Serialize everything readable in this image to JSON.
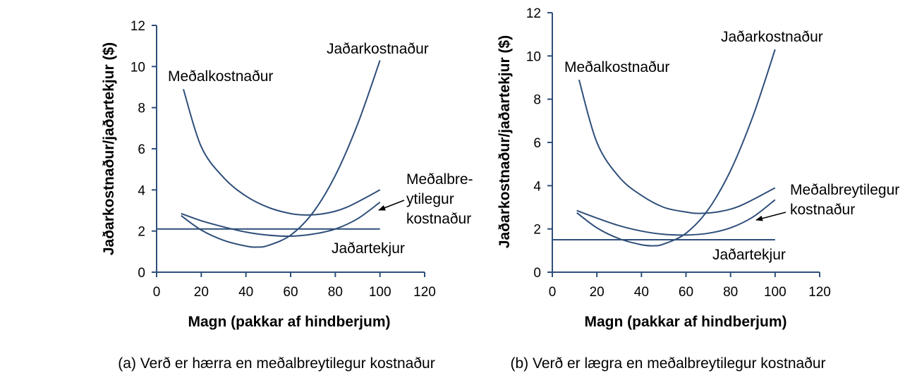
{
  "chart_data": [
    {
      "type": "line",
      "xlabel": "Magn (pakkar af hindberjum)",
      "ylabel": "Jaðarkostnaður/jaðartekjur ($)",
      "caption": "(a) Verð er hærra en meðalbreytilegur kostnaður",
      "xlim": [
        0,
        120
      ],
      "ylim": [
        0,
        12
      ],
      "xticks": [
        0,
        20,
        40,
        60,
        80,
        100,
        120
      ],
      "yticks": [
        0,
        2,
        4,
        6,
        8,
        10,
        12
      ],
      "grid": false,
      "line_color": "#2f4f7a",
      "series": [
        {
          "name": "Meðalkostnaður",
          "label_lines": [
            "Meðalkostnaður"
          ],
          "x": [
            12,
            20,
            30,
            40,
            50,
            60,
            67,
            75,
            85,
            100
          ],
          "y": [
            8.9,
            6.1,
            4.6,
            3.7,
            3.15,
            2.85,
            2.78,
            2.85,
            3.15,
            4.0
          ]
        },
        {
          "name": "Jaðarkostnaður",
          "label_lines": [
            "Jaðarkostnaður"
          ],
          "x": [
            11,
            20,
            30,
            40,
            45,
            50,
            60,
            70,
            80,
            90,
            100
          ],
          "y": [
            2.75,
            2.05,
            1.55,
            1.27,
            1.22,
            1.3,
            1.8,
            2.9,
            4.7,
            7.2,
            10.3
          ]
        },
        {
          "name": "Meðalbreytilegur kostnaður",
          "label_lines": [
            "Meðalbre-",
            "ytilegur",
            "kostnaður"
          ],
          "x": [
            11,
            20,
            30,
            40,
            50,
            60,
            70,
            80,
            90,
            100
          ],
          "y": [
            2.85,
            2.5,
            2.2,
            1.95,
            1.8,
            1.75,
            1.85,
            2.1,
            2.6,
            3.4
          ]
        },
        {
          "name": "Jaðartekjur",
          "label_lines": [
            "Jaðartekjur"
          ],
          "x": [
            0,
            100
          ],
          "y": [
            2.1,
            2.1
          ]
        }
      ]
    },
    {
      "type": "line",
      "xlabel": "Magn (pakkar af hindberjum)",
      "ylabel": "Jaðarkostnaður/jaðartekjur ($)",
      "caption": "(b) Verð er lægra en meðalbreytilegur kostnaður",
      "xlim": [
        0,
        120
      ],
      "ylim": [
        0,
        12
      ],
      "xticks": [
        0,
        20,
        40,
        60,
        80,
        100,
        120
      ],
      "yticks": [
        0,
        2,
        4,
        6,
        8,
        10,
        12
      ],
      "grid": false,
      "line_color": "#2f4f7a",
      "series": [
        {
          "name": "Meðalkostnaður",
          "label_lines": [
            "Meðalkostnaður"
          ],
          "x": [
            12,
            20,
            30,
            40,
            50,
            60,
            66,
            75,
            85,
            100
          ],
          "y": [
            8.9,
            6.0,
            4.4,
            3.55,
            3.0,
            2.78,
            2.72,
            2.8,
            3.1,
            3.9
          ]
        },
        {
          "name": "Jaðarkostnaður",
          "label_lines": [
            "Jaðarkostnaður"
          ],
          "x": [
            11,
            20,
            30,
            40,
            45,
            50,
            60,
            70,
            80,
            90,
            100
          ],
          "y": [
            2.75,
            2.05,
            1.55,
            1.27,
            1.22,
            1.3,
            1.8,
            2.9,
            4.7,
            7.2,
            10.3
          ]
        },
        {
          "name": "Meðalbreytilegur kostnaður",
          "label_lines": [
            "Meðalbreytilegur",
            "kostnaður"
          ],
          "x": [
            11,
            20,
            30,
            40,
            50,
            60,
            70,
            80,
            90,
            100
          ],
          "y": [
            2.85,
            2.5,
            2.15,
            1.9,
            1.75,
            1.72,
            1.8,
            2.05,
            2.55,
            3.35
          ]
        },
        {
          "name": "Jaðartekjur",
          "label_lines": [
            "Jaðartekjur"
          ],
          "x": [
            0,
            100
          ],
          "y": [
            1.5,
            1.5
          ]
        }
      ]
    }
  ]
}
